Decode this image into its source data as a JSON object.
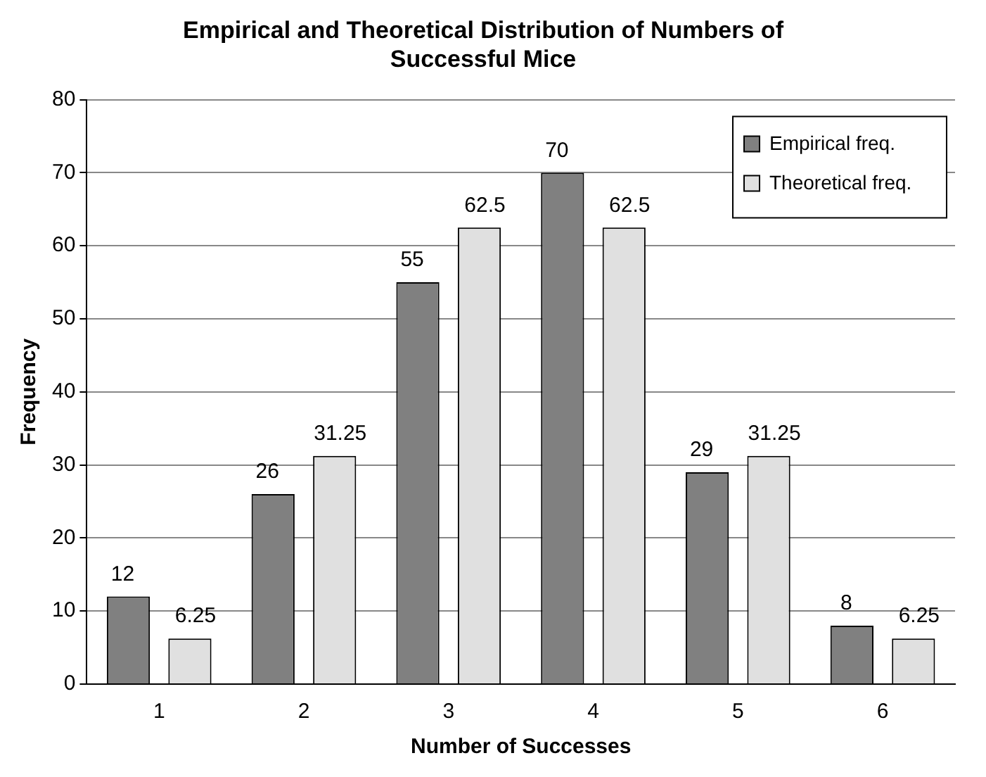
{
  "chart_data": {
    "type": "bar",
    "title": "Empirical and Theoretical Distribution of Numbers of Successful Mice",
    "xlabel": "Number of Successes",
    "ylabel": "Frequency",
    "categories": [
      "1",
      "2",
      "3",
      "4",
      "5",
      "6"
    ],
    "series": [
      {
        "name": "Empirical freq.",
        "color": "#808080",
        "values": [
          12,
          26,
          55,
          70,
          29,
          8
        ]
      },
      {
        "name": "Theoretical freq.",
        "color": "#e0e0e0",
        "values": [
          6.25,
          31.25,
          62.5,
          62.5,
          31.25,
          6.25
        ]
      }
    ],
    "ylim": [
      0,
      80
    ],
    "yticks": [
      0,
      10,
      20,
      30,
      40,
      50,
      60,
      70,
      80
    ],
    "grid": "y",
    "legend": "top right",
    "data_labels": true
  }
}
